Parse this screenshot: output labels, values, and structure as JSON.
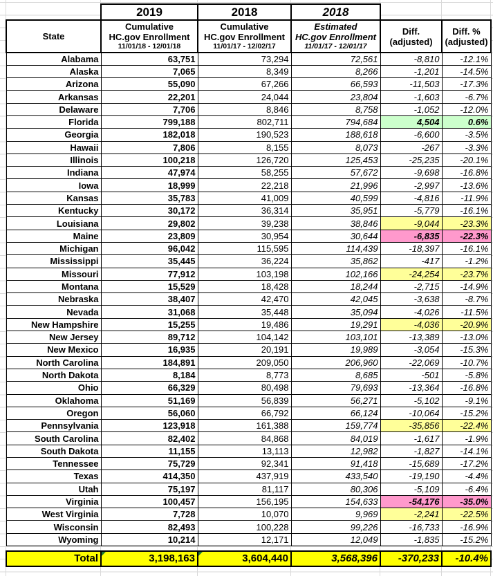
{
  "table": {
    "year_row": [
      "2019",
      "2018",
      "2018"
    ],
    "columns": [
      {
        "title": "State"
      },
      {
        "l1": "Cumulative",
        "l2": "HC.gov Enrollment",
        "l3": "11/01/18 - 12/01/18"
      },
      {
        "l1": "Cumulative",
        "l2": "HC.gov Enrollment",
        "l3": "11/01/17 - 12/02/17"
      },
      {
        "l1": "Estimated",
        "l2": "HC.gov Enrollment",
        "l3": "11/01/17 - 12/01/17"
      },
      {
        "l1": "Diff.",
        "l2": "(adjusted)"
      },
      {
        "l1": "Diff. %",
        "l2": "(adjusted)"
      }
    ],
    "rows": [
      {
        "state": "Alabama",
        "enroll_2019": "63,751",
        "enroll_2018": "73,294",
        "est_2018": "72,561",
        "diff": "-8,810",
        "diff_pct": "-12.1%",
        "highlight": "none"
      },
      {
        "state": "Alaska",
        "enroll_2019": "7,065",
        "enroll_2018": "8,349",
        "est_2018": "8,266",
        "diff": "-1,201",
        "diff_pct": "-14.5%",
        "highlight": "none"
      },
      {
        "state": "Arizona",
        "enroll_2019": "55,090",
        "enroll_2018": "67,266",
        "est_2018": "66,593",
        "diff": "-11,503",
        "diff_pct": "-17.3%",
        "highlight": "none"
      },
      {
        "state": "Arkansas",
        "enroll_2019": "22,201",
        "enroll_2018": "24,044",
        "est_2018": "23,804",
        "diff": "-1,603",
        "diff_pct": "-6.7%",
        "highlight": "none"
      },
      {
        "state": "Delaware",
        "enroll_2019": "7,706",
        "enroll_2018": "8,846",
        "est_2018": "8,758",
        "diff": "-1,052",
        "diff_pct": "-12.0%",
        "highlight": "none"
      },
      {
        "state": "Florida",
        "enroll_2019": "799,188",
        "enroll_2018": "802,711",
        "est_2018": "794,684",
        "diff": "4,504",
        "diff_pct": "0.6%",
        "highlight": "green"
      },
      {
        "state": "Georgia",
        "enroll_2019": "182,018",
        "enroll_2018": "190,523",
        "est_2018": "188,618",
        "diff": "-6,600",
        "diff_pct": "-3.5%",
        "highlight": "none"
      },
      {
        "state": "Hawaii",
        "enroll_2019": "7,806",
        "enroll_2018": "8,155",
        "est_2018": "8,073",
        "diff": "-267",
        "diff_pct": "-3.3%",
        "highlight": "none"
      },
      {
        "state": "Illinois",
        "enroll_2019": "100,218",
        "enroll_2018": "126,720",
        "est_2018": "125,453",
        "diff": "-25,235",
        "diff_pct": "-20.1%",
        "highlight": "none"
      },
      {
        "state": "Indiana",
        "enroll_2019": "47,974",
        "enroll_2018": "58,255",
        "est_2018": "57,672",
        "diff": "-9,698",
        "diff_pct": "-16.8%",
        "highlight": "none"
      },
      {
        "state": "Iowa",
        "enroll_2019": "18,999",
        "enroll_2018": "22,218",
        "est_2018": "21,996",
        "diff": "-2,997",
        "diff_pct": "-13.6%",
        "highlight": "none"
      },
      {
        "state": "Kansas",
        "enroll_2019": "35,783",
        "enroll_2018": "41,009",
        "est_2018": "40,599",
        "diff": "-4,816",
        "diff_pct": "-11.9%",
        "highlight": "none"
      },
      {
        "state": "Kentucky",
        "enroll_2019": "30,172",
        "enroll_2018": "36,314",
        "est_2018": "35,951",
        "diff": "-5,779",
        "diff_pct": "-16.1%",
        "highlight": "none"
      },
      {
        "state": "Louisiana",
        "enroll_2019": "29,802",
        "enroll_2018": "39,238",
        "est_2018": "38,846",
        "diff": "-9,044",
        "diff_pct": "-23.3%",
        "highlight": "yellow"
      },
      {
        "state": "Maine",
        "enroll_2019": "23,809",
        "enroll_2018": "30,954",
        "est_2018": "30,644",
        "diff": "-6,835",
        "diff_pct": "-22.3%",
        "highlight": "pink"
      },
      {
        "state": "Michigan",
        "enroll_2019": "96,042",
        "enroll_2018": "115,595",
        "est_2018": "114,439",
        "diff": "-18,397",
        "diff_pct": "-16.1%",
        "highlight": "none"
      },
      {
        "state": "Mississippi",
        "enroll_2019": "35,445",
        "enroll_2018": "36,224",
        "est_2018": "35,862",
        "diff": "-417",
        "diff_pct": "-1.2%",
        "highlight": "none"
      },
      {
        "state": "Missouri",
        "enroll_2019": "77,912",
        "enroll_2018": "103,198",
        "est_2018": "102,166",
        "diff": "-24,254",
        "diff_pct": "-23.7%",
        "highlight": "yellow"
      },
      {
        "state": "Montana",
        "enroll_2019": "15,529",
        "enroll_2018": "18,428",
        "est_2018": "18,244",
        "diff": "-2,715",
        "diff_pct": "-14.9%",
        "highlight": "none"
      },
      {
        "state": "Nebraska",
        "enroll_2019": "38,407",
        "enroll_2018": "42,470",
        "est_2018": "42,045",
        "diff": "-3,638",
        "diff_pct": "-8.7%",
        "highlight": "none"
      },
      {
        "state": "Nevada",
        "enroll_2019": "31,068",
        "enroll_2018": "35,448",
        "est_2018": "35,094",
        "diff": "-4,026",
        "diff_pct": "-11.5%",
        "highlight": "none"
      },
      {
        "state": "New Hampshire",
        "enroll_2019": "15,255",
        "enroll_2018": "19,486",
        "est_2018": "19,291",
        "diff": "-4,036",
        "diff_pct": "-20.9%",
        "highlight": "yellow"
      },
      {
        "state": "New Jersey",
        "enroll_2019": "89,712",
        "enroll_2018": "104,142",
        "est_2018": "103,101",
        "diff": "-13,389",
        "diff_pct": "-13.0%",
        "highlight": "none"
      },
      {
        "state": "New Mexico",
        "enroll_2019": "16,935",
        "enroll_2018": "20,191",
        "est_2018": "19,989",
        "diff": "-3,054",
        "diff_pct": "-15.3%",
        "highlight": "none"
      },
      {
        "state": "North Carolina",
        "enroll_2019": "184,891",
        "enroll_2018": "209,050",
        "est_2018": "206,960",
        "diff": "-22,069",
        "diff_pct": "-10.7%",
        "highlight": "none"
      },
      {
        "state": "North Dakota",
        "enroll_2019": "8,184",
        "enroll_2018": "8,773",
        "est_2018": "8,685",
        "diff": "-501",
        "diff_pct": "-5.8%",
        "highlight": "none"
      },
      {
        "state": "Ohio",
        "enroll_2019": "66,329",
        "enroll_2018": "80,498",
        "est_2018": "79,693",
        "diff": "-13,364",
        "diff_pct": "-16.8%",
        "highlight": "none"
      },
      {
        "state": "Oklahoma",
        "enroll_2019": "51,169",
        "enroll_2018": "56,839",
        "est_2018": "56,271",
        "diff": "-5,102",
        "diff_pct": "-9.1%",
        "highlight": "none"
      },
      {
        "state": "Oregon",
        "enroll_2019": "56,060",
        "enroll_2018": "66,792",
        "est_2018": "66,124",
        "diff": "-10,064",
        "diff_pct": "-15.2%",
        "highlight": "none"
      },
      {
        "state": "Pennsylvania",
        "enroll_2019": "123,918",
        "enroll_2018": "161,388",
        "est_2018": "159,774",
        "diff": "-35,856",
        "diff_pct": "-22.4%",
        "highlight": "yellow"
      },
      {
        "state": "South Carolina",
        "enroll_2019": "82,402",
        "enroll_2018": "84,868",
        "est_2018": "84,019",
        "diff": "-1,617",
        "diff_pct": "-1.9%",
        "highlight": "none"
      },
      {
        "state": "South Dakota",
        "enroll_2019": "11,155",
        "enroll_2018": "13,113",
        "est_2018": "12,982",
        "diff": "-1,827",
        "diff_pct": "-14.1%",
        "highlight": "none"
      },
      {
        "state": "Tennessee",
        "enroll_2019": "75,729",
        "enroll_2018": "92,341",
        "est_2018": "91,418",
        "diff": "-15,689",
        "diff_pct": "-17.2%",
        "highlight": "none"
      },
      {
        "state": "Texas",
        "enroll_2019": "414,350",
        "enroll_2018": "437,919",
        "est_2018": "433,540",
        "diff": "-19,190",
        "diff_pct": "-4.4%",
        "highlight": "none"
      },
      {
        "state": "Utah",
        "enroll_2019": "75,197",
        "enroll_2018": "81,117",
        "est_2018": "80,306",
        "diff": "-5,109",
        "diff_pct": "-6.4%",
        "highlight": "none"
      },
      {
        "state": "Virginia",
        "enroll_2019": "100,457",
        "enroll_2018": "156,195",
        "est_2018": "154,633",
        "diff": "-54,176",
        "diff_pct": "-35.0%",
        "highlight": "pink"
      },
      {
        "state": "West Virginia",
        "enroll_2019": "7,728",
        "enroll_2018": "10,070",
        "est_2018": "9,969",
        "diff": "-2,241",
        "diff_pct": "-22.5%",
        "highlight": "yellow"
      },
      {
        "state": "Wisconsin",
        "enroll_2019": "82,493",
        "enroll_2018": "100,228",
        "est_2018": "99,226",
        "diff": "-16,733",
        "diff_pct": "-16.9%",
        "highlight": "none"
      },
      {
        "state": "Wyoming",
        "enroll_2019": "10,214",
        "enroll_2018": "12,171",
        "est_2018": "12,049",
        "diff": "-1,835",
        "diff_pct": "-15.2%",
        "highlight": "none"
      }
    ],
    "total": {
      "label": "Total",
      "enroll_2019": "3,198,163",
      "enroll_2018": "3,604,440",
      "est_2018": "3,568,396",
      "diff": "-370,233",
      "diff_pct": "-10.4%"
    }
  },
  "colors": {
    "highlight_yellow": "#ffff99",
    "highlight_pink": "#ff99cc",
    "highlight_green": "#ccffcc",
    "total_yellow": "#ffff00",
    "border_black": "#000000",
    "text_black": "#000000",
    "grid_gray": "#d9d9d9",
    "indicator_green": "#1e7a34"
  }
}
